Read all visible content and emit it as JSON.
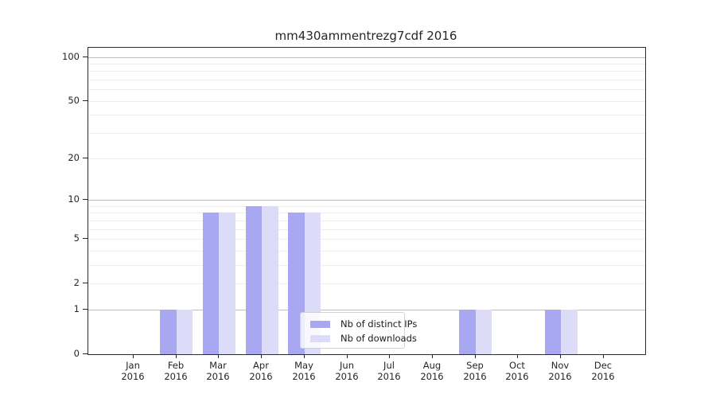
{
  "chart_data": {
    "type": "bar",
    "title": "mm430ammentrezg7cdf 2016",
    "categories": [
      "Jan",
      "Feb",
      "Mar",
      "Apr",
      "May",
      "Jun",
      "Jul",
      "Aug",
      "Sep",
      "Oct",
      "Nov",
      "Dec"
    ],
    "year_label": "2016",
    "series": [
      {
        "name": "Nb of distinct IPs",
        "color": "#a7a7f2",
        "values": [
          0,
          1,
          8,
          9,
          8,
          0,
          0,
          0,
          1,
          0,
          1,
          0
        ]
      },
      {
        "name": "Nb of downloads",
        "color": "#dcdcf9",
        "values": [
          0,
          1,
          8,
          9,
          8,
          0,
          0,
          0,
          1,
          0,
          1,
          0
        ]
      }
    ],
    "y_ticks": [
      0,
      1,
      2,
      5,
      10,
      20,
      50,
      100
    ],
    "y_scale": "log1p",
    "ylim": [
      0,
      100
    ],
    "grid": {
      "major_values": [
        1,
        10,
        100
      ],
      "minor_values": [
        2,
        3,
        4,
        5,
        6,
        7,
        8,
        9,
        20,
        30,
        40,
        50,
        60,
        70,
        80,
        90
      ],
      "major_color": "#bdbdbd",
      "minor_color": "#ededed"
    },
    "legend": {
      "position": "lower-center"
    },
    "colors": {
      "spine": "#2b2b2b",
      "text": "#262626",
      "background": "#ffffff"
    }
  }
}
